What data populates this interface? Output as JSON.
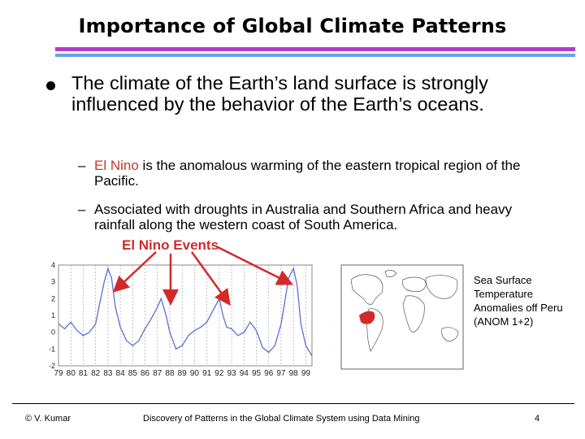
{
  "title": "Importance of Global Climate Patterns",
  "main_bullet": "The climate of the Earth’s land surface is strongly influenced by the behavior of the Earth’s oceans.",
  "sub_bullets": [
    {
      "dash": "–",
      "highlight": "El Nino",
      "text": " is the anomalous warming of the eastern tropical region of the Pacific."
    },
    {
      "dash": "–",
      "highlight": "",
      "text": "Associated with droughts in Australia and Southern Africa and heavy rainfall along the western coast of South America."
    }
  ],
  "events_label": "El Nino Events",
  "sst_label": "Sea Surface Temperature Anomalies off Peru (ANOM 1+2)",
  "chart_data": {
    "type": "line",
    "x_ticks": [
      "79",
      "80",
      "81",
      "82",
      "83",
      "84",
      "85",
      "86",
      "87",
      "88",
      "89",
      "90",
      "91",
      "92",
      "93",
      "94",
      "95",
      "96",
      "97",
      "98",
      "99"
    ],
    "y_ticks": [
      "4",
      "3",
      "2",
      "1",
      "0",
      "-1",
      "-2"
    ],
    "ylim": [
      -2,
      4
    ],
    "xlim": [
      1979,
      1999.5
    ],
    "series": [
      {
        "x": [
          1979,
          1979.5,
          1980,
          1980.5,
          1981,
          1981.5,
          1982,
          1982.3,
          1982.7,
          1983,
          1983.3,
          1983.6,
          1984,
          1984.5,
          1985,
          1985.5,
          1986,
          1986.5,
          1987,
          1987.3,
          1987.7,
          1988,
          1988.5,
          1989,
          1989.5,
          1990,
          1990.5,
          1991,
          1991.5,
          1992,
          1992.3,
          1992.6,
          1993,
          1993.5,
          1994,
          1994.5,
          1995,
          1995.5,
          1996,
          1996.5,
          1997,
          1997.3,
          1997.6,
          1998,
          1998.3,
          1998.6,
          1999,
          1999.5
        ],
        "values": [
          0.5,
          0.2,
          0.6,
          0.1,
          -0.2,
          0.0,
          0.5,
          1.6,
          3.0,
          3.8,
          3.2,
          1.5,
          0.3,
          -0.5,
          -0.8,
          -0.5,
          0.2,
          0.8,
          1.5,
          2.0,
          1.0,
          0.0,
          -1.0,
          -0.8,
          -0.2,
          0.1,
          0.3,
          0.6,
          1.3,
          2.0,
          1.0,
          0.3,
          0.2,
          -0.2,
          0.0,
          0.6,
          0.1,
          -0.9,
          -1.2,
          -0.8,
          0.5,
          1.8,
          3.2,
          3.8,
          2.8,
          0.5,
          -0.8,
          -1.4
        ]
      }
    ]
  },
  "footer": {
    "left": "© V. Kumar",
    "center": "Discovery of Patterns in the Global Climate System using Data Mining",
    "right": "4"
  },
  "colors": {
    "rule_top": "#b43cc8",
    "rule_bottom": "#6aa3e0",
    "highlight": "#c0392b",
    "arrow": "#d22a2a",
    "series": "#5b6fd6",
    "map_anomaly": "#d22a2a"
  }
}
